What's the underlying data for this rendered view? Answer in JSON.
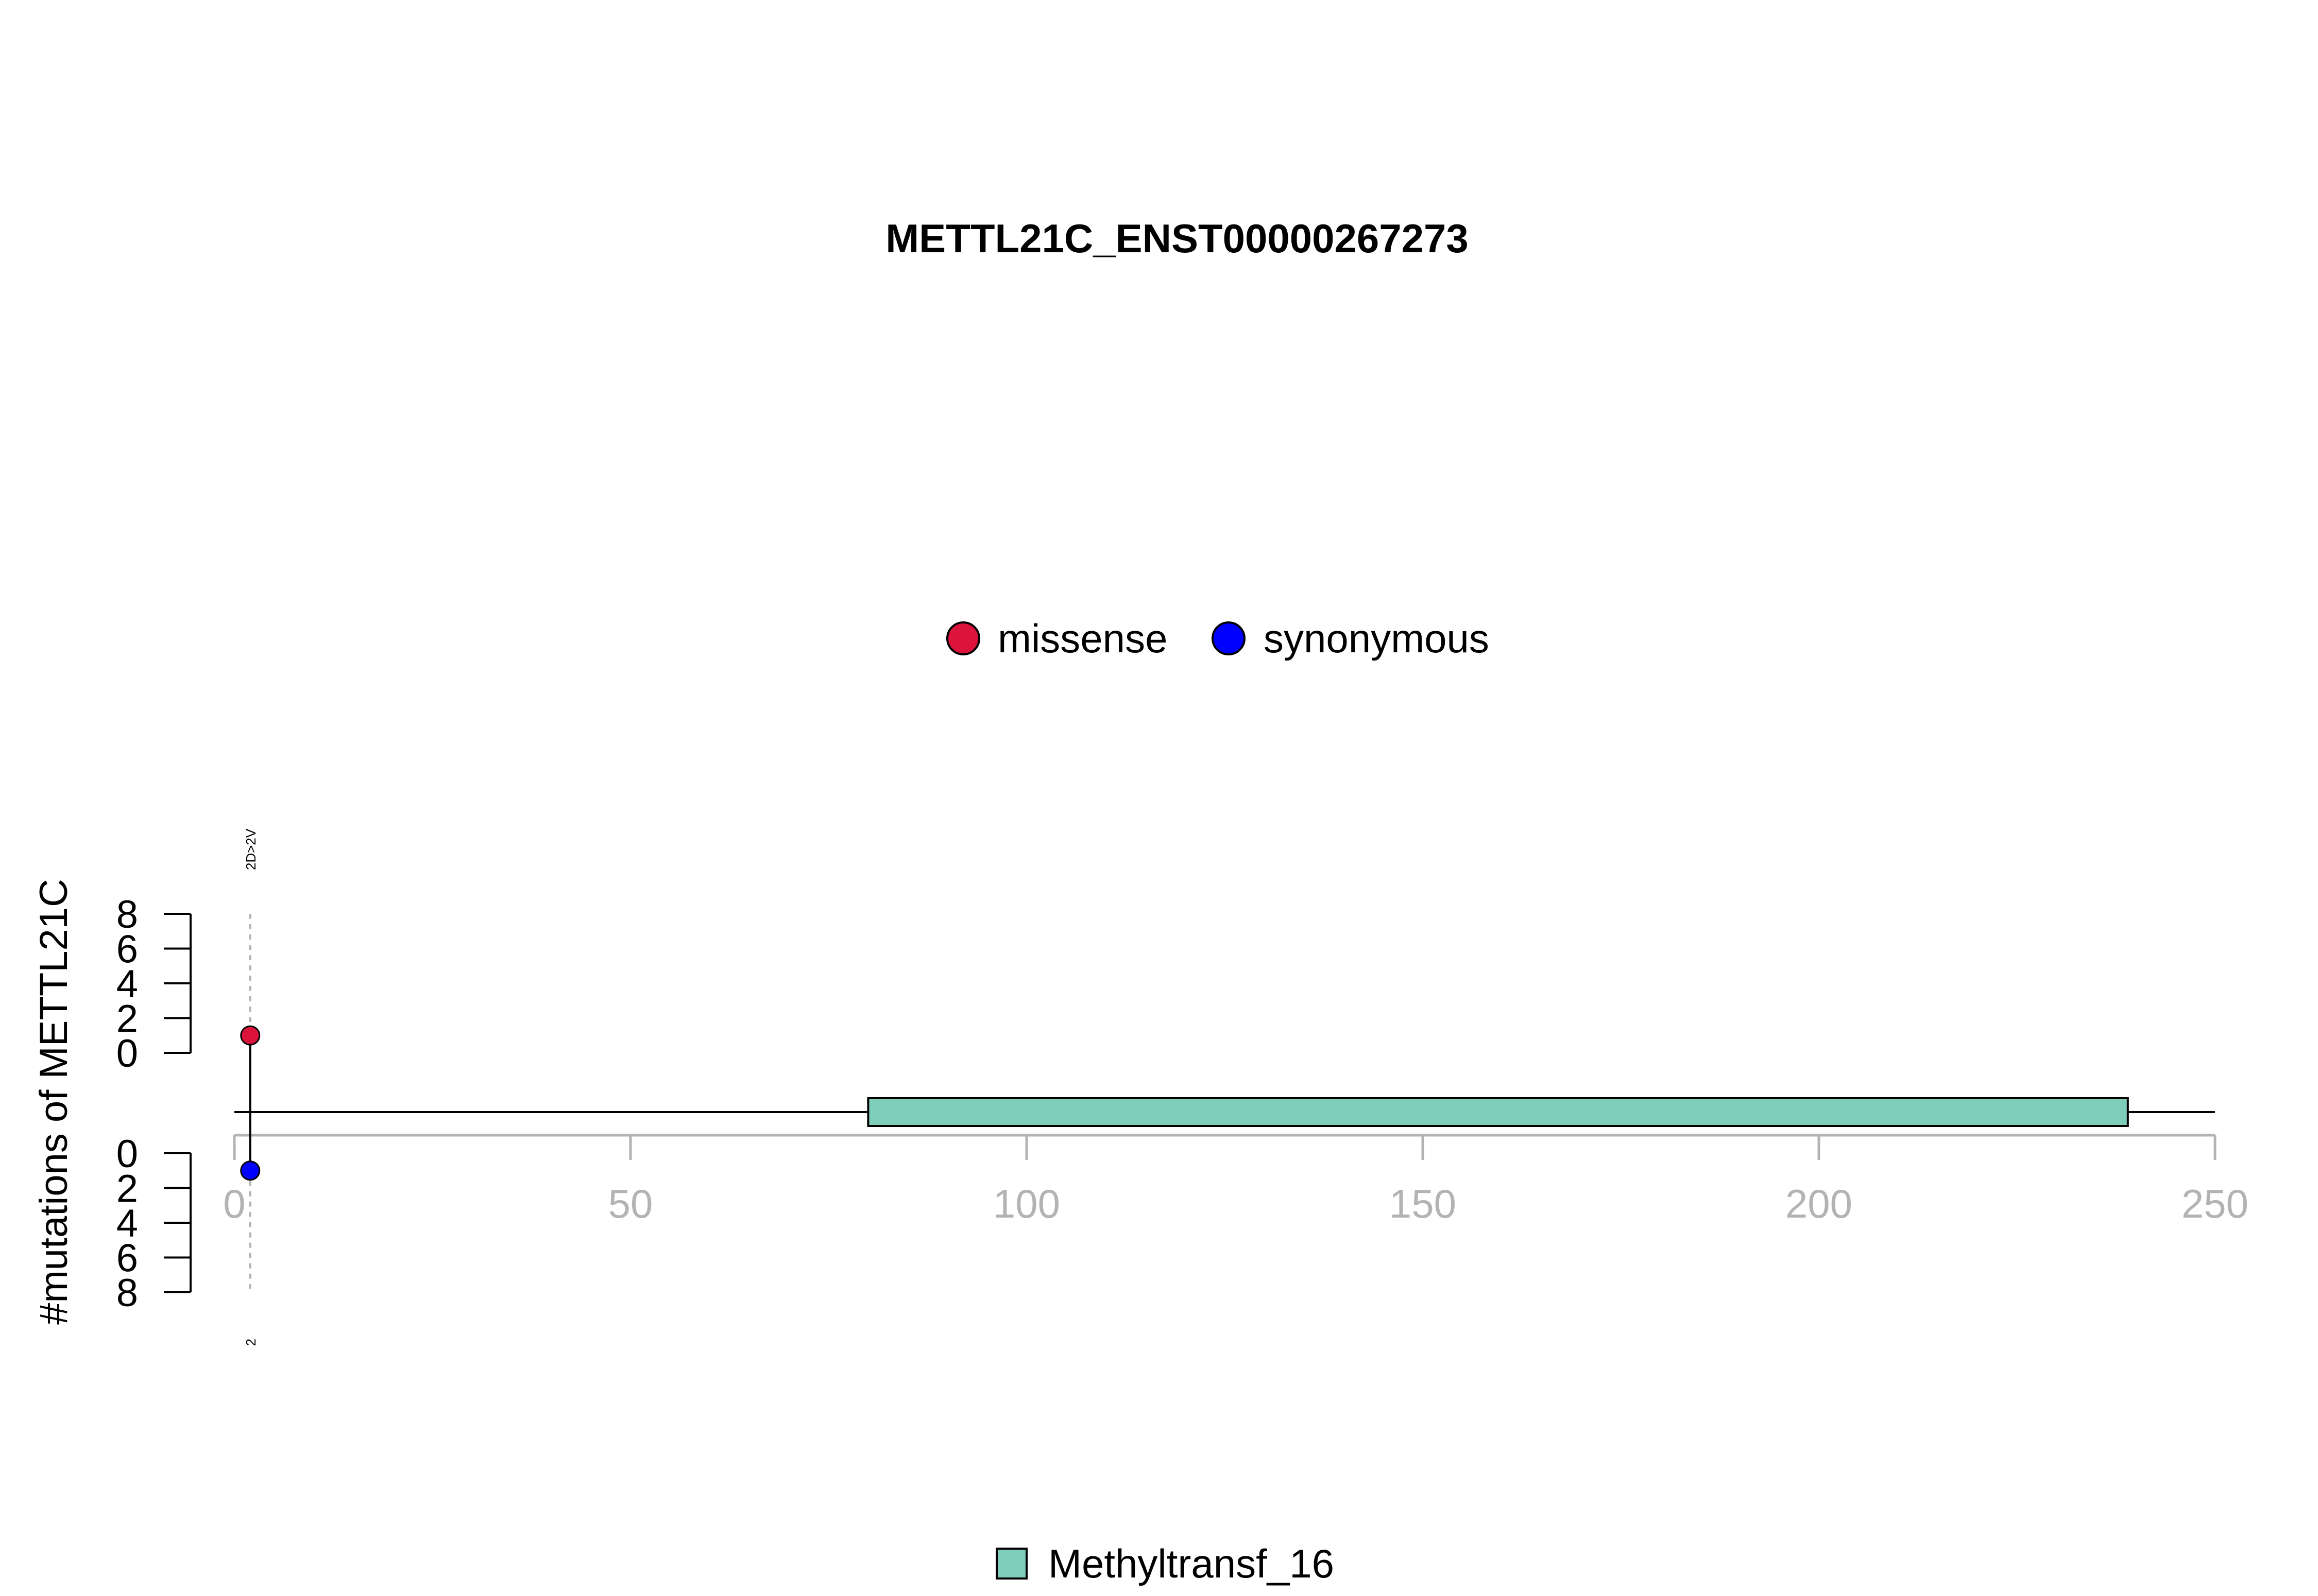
{
  "chart_data": {
    "type": "lollipop",
    "title": "METTL21C_ENST00000267273",
    "ylabel": "#mutations of METTL21C",
    "xlim": [
      0,
      250
    ],
    "x_ticks": [
      0,
      50,
      100,
      150,
      200,
      250
    ],
    "y_ticks_top": [
      0,
      2,
      4,
      6,
      8
    ],
    "y_ticks_bottom": [
      0,
      2,
      4,
      6,
      8
    ],
    "ylim_top": [
      0,
      8
    ],
    "ylim_bottom": [
      0,
      8
    ],
    "legend_top": [
      {
        "label": "missense",
        "color": "#DC143C"
      },
      {
        "label": "synonymous",
        "color": "#0000FF"
      }
    ],
    "legend_bottom": [
      {
        "label": "Methyltransf_16",
        "color": "#7FCDBB"
      }
    ],
    "mutations_top": [
      {
        "position": 2,
        "count": 1,
        "type": "missense",
        "color": "#DC143C",
        "label": "2D>2V"
      }
    ],
    "mutations_bottom": [
      {
        "position": 2,
        "count": 1,
        "type": "synonymous",
        "color": "#0000FF",
        "label": "2"
      }
    ],
    "domains": [
      {
        "name": "Methyltransf_16",
        "start": 80,
        "end": 239,
        "color": "#7FCDBB"
      }
    ],
    "protein_length": 250
  }
}
